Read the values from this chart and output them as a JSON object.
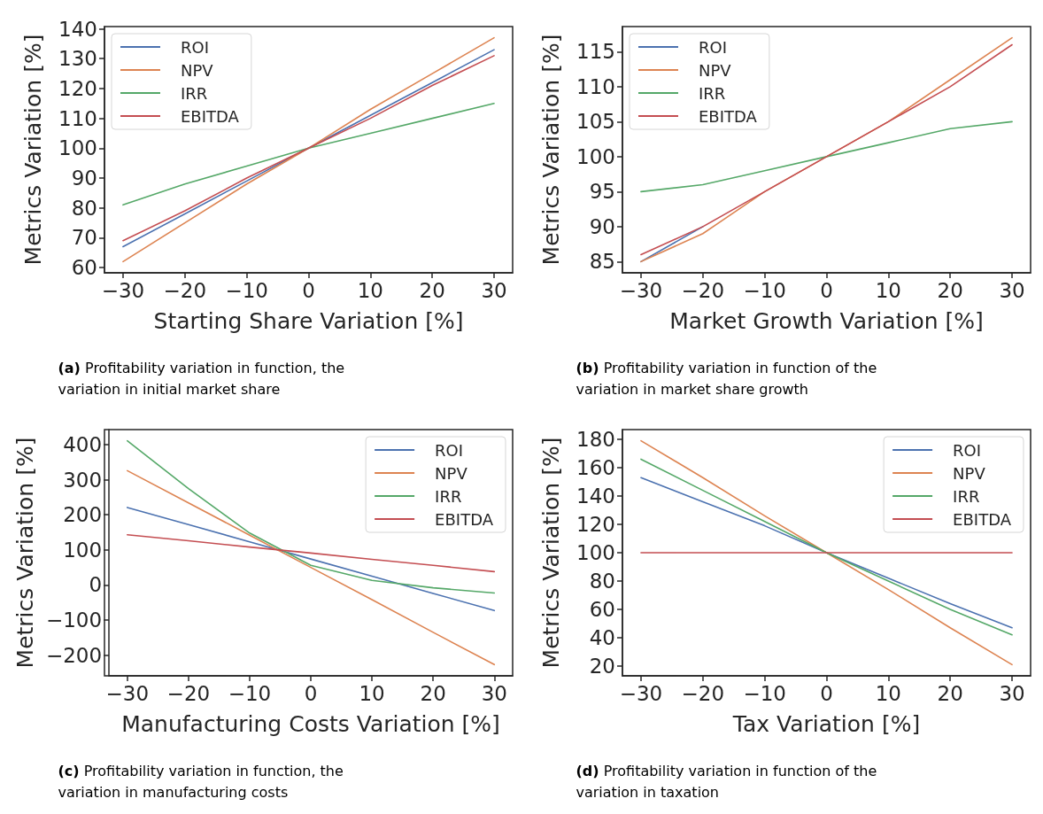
{
  "chart_data": [
    {
      "type": "line",
      "xlabel": "Starting Share Variation [%]",
      "ylabel": "Metrics Variation [%]",
      "x": [
        -30,
        -20,
        -10,
        0,
        10,
        20,
        30
      ],
      "xlim": [
        -33,
        33
      ],
      "xticks": [
        {
          "value": -30,
          "label": "−30"
        },
        {
          "value": -20,
          "label": "−20"
        },
        {
          "value": -10,
          "label": "−10"
        },
        0,
        10,
        20,
        30
      ],
      "ylim": [
        58.25,
        140.75
      ],
      "yticks": [
        60,
        70,
        80,
        90,
        100,
        110,
        120,
        130,
        140
      ],
      "legend": "top left",
      "grid": false,
      "annotations": [
        "(a) Profitability variation in function, the variation in initial market share"
      ],
      "series": [
        {
          "name": "ROI",
          "color": "#4c72b0",
          "values": [
            67,
            78,
            89,
            100,
            111,
            122,
            133
          ]
        },
        {
          "name": "NPV",
          "color": "#dd8452",
          "values": [
            62,
            75,
            88,
            100,
            113,
            125,
            137
          ]
        },
        {
          "name": "IRR",
          "color": "#55a868",
          "values": [
            81,
            88,
            94,
            100,
            105,
            110,
            115
          ]
        },
        {
          "name": "EBITDA",
          "color": "#c44e52",
          "values": [
            69,
            79,
            90,
            100,
            110,
            121,
            131
          ]
        }
      ]
    },
    {
      "type": "line",
      "xlabel": "Market Growth Variation [%]",
      "ylabel": "Metrics Variation [%]",
      "x": [
        -30,
        -20,
        -10,
        0,
        10,
        20,
        30
      ],
      "xlim": [
        -33,
        33
      ],
      "xticks": [
        {
          "value": -30,
          "label": "−30"
        },
        {
          "value": -20,
          "label": "−20"
        },
        {
          "value": -10,
          "label": "−10"
        },
        0,
        10,
        20,
        30
      ],
      "ylim": [
        83.4,
        118.6
      ],
      "yticks": [
        85,
        90,
        95,
        100,
        105,
        110,
        115
      ],
      "legend": "top left",
      "grid": false,
      "annotations": [
        "(b) Profitability variation in function of the variation in market share growth"
      ],
      "series": [
        {
          "name": "ROI",
          "color": "#4c72b0",
          "values": [
            85,
            90,
            null,
            null,
            null,
            null,
            null
          ]
        },
        {
          "name": "NPV",
          "color": "#dd8452",
          "values": [
            85,
            89,
            95,
            100,
            105,
            111,
            117
          ]
        },
        {
          "name": "IRR",
          "color": "#55a868",
          "values": [
            95,
            96,
            98,
            100,
            102,
            104,
            105
          ]
        },
        {
          "name": "EBITDA",
          "color": "#c44e52",
          "values": [
            86,
            90,
            95,
            100,
            105,
            110,
            116
          ]
        }
      ]
    },
    {
      "type": "line",
      "xlabel": "Manufacturing Costs Variation [%]",
      "ylabel": "Metrics Variation [%]",
      "x": [
        -30,
        -20,
        -10,
        0,
        10,
        20,
        30
      ],
      "xlim": [
        -33,
        33
      ],
      "xticks": [
        {
          "value": -30,
          "label": "−30"
        },
        {
          "value": -20,
          "label": "−20"
        },
        {
          "value": -10,
          "label": "−10"
        },
        0,
        10,
        20,
        30
      ],
      "ylim": [
        -259,
        443
      ],
      "yticks": [
        {
          "value": -200,
          "label": "−200"
        },
        {
          "value": -100,
          "label": "−100"
        },
        0,
        100,
        200,
        300,
        400
      ],
      "legend": "top right",
      "grid": false,
      "annotations": [
        "(c) Profitability variation in function, the variation in manufacturing costs"
      ],
      "series": [
        {
          "name": "ROI",
          "color": "#4c72b0",
          "values": [
            221,
            172,
            123,
            74,
            25,
            -24,
            -73
          ]
        },
        {
          "name": "NPV",
          "color": "#dd8452",
          "values": [
            326,
            234,
            142,
            50,
            -42,
            -135,
            -227
          ]
        },
        {
          "name": "IRR",
          "color": "#55a868",
          "values": [
            411,
            275,
            148,
            56,
            13,
            -8,
            -23
          ]
        },
        {
          "name": "EBITDA",
          "color": "#c44e52",
          "values": [
            143,
            126,
            108,
            91,
            73,
            56,
            38
          ]
        }
      ]
    },
    {
      "type": "line",
      "xlabel": "Tax Variation [%]",
      "ylabel": "Metrics Variation [%]",
      "x": [
        -30,
        -20,
        -10,
        0,
        10,
        20,
        30
      ],
      "xlim": [
        -33,
        33
      ],
      "xticks": [
        {
          "value": -30,
          "label": "−30"
        },
        {
          "value": -20,
          "label": "−20"
        },
        {
          "value": -10,
          "label": "−10"
        },
        0,
        10,
        20,
        30
      ],
      "ylim": [
        13.1,
        186.9
      ],
      "yticks": [
        20,
        40,
        60,
        80,
        100,
        120,
        140,
        160,
        180
      ],
      "legend": "top right",
      "grid": false,
      "annotations": [
        "(d) Profitability variation in function of the variation in taxation"
      ],
      "series": [
        {
          "name": "ROI",
          "color": "#4c72b0",
          "values": [
            153,
            136,
            119,
            100,
            82,
            64,
            47
          ]
        },
        {
          "name": "NPV",
          "color": "#dd8452",
          "values": [
            179,
            153,
            126,
            100,
            74,
            47,
            21
          ]
        },
        {
          "name": "IRR",
          "color": "#55a868",
          "values": [
            166,
            144,
            122,
            100,
            80,
            60,
            42
          ]
        },
        {
          "name": "EBITDA",
          "color": "#c44e52",
          "values": [
            100,
            100,
            100,
            100,
            100,
            100,
            100
          ]
        }
      ]
    }
  ]
}
